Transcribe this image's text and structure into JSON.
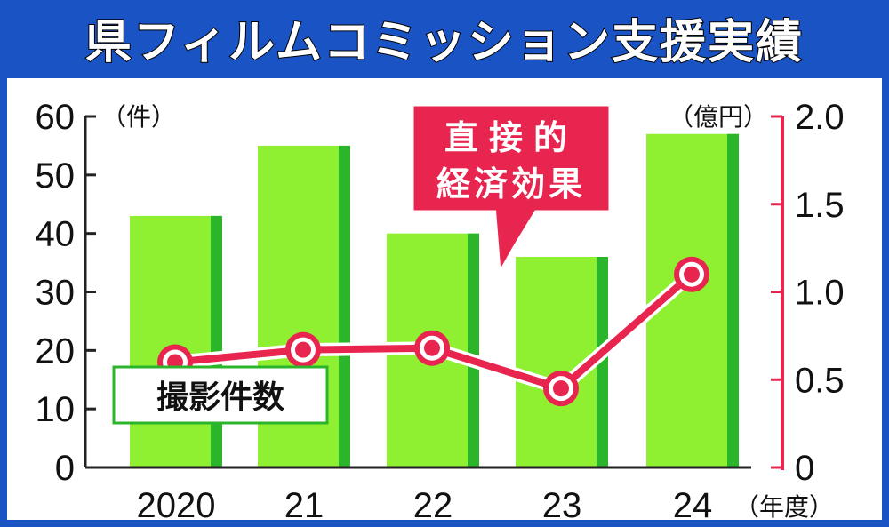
{
  "title": "県フィルムコミッション支援実績",
  "chart_data": {
    "type": "bar",
    "categories": [
      "2020",
      "21",
      "22",
      "23",
      "24"
    ],
    "x_unit": "（年度）",
    "series": [
      {
        "name": "撮影件数",
        "type": "bar",
        "axis": "left",
        "values": [
          43,
          55,
          40,
          36,
          57
        ]
      },
      {
        "name": "直接的経済効果",
        "type": "line",
        "axis": "right",
        "values": [
          0.6,
          0.67,
          0.68,
          0.45,
          1.1
        ]
      }
    ],
    "left_axis": {
      "unit": "（件）",
      "ylim": [
        0,
        60
      ],
      "ticks": [
        "0",
        "10",
        "20",
        "30",
        "40",
        "50",
        "60"
      ]
    },
    "right_axis": {
      "unit": "（億円）",
      "ylim": [
        0,
        2.0
      ],
      "ticks": [
        "0",
        "0.5",
        "1.0",
        "1.5",
        "2.0"
      ]
    },
    "grid": false,
    "colors": {
      "bar": "#8ff032",
      "bar_shade": "#2bb52b",
      "line": "#e8254f",
      "background": "#1a53c4"
    }
  }
}
